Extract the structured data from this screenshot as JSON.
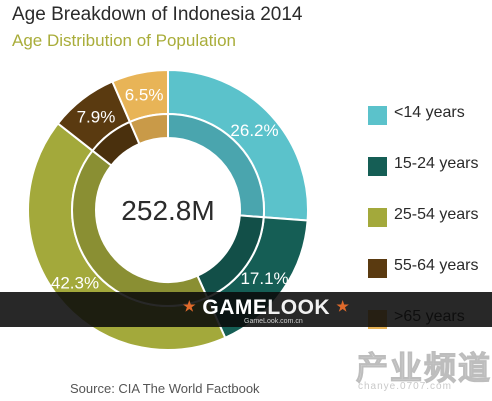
{
  "chart_data": {
    "type": "pie",
    "title": "Age Breakdown of Indonesia 2014",
    "subtitle": "Age Distribution of Population",
    "center_label": "252.8M",
    "categories": [
      "<14 years",
      "15-24 years",
      "25-54 years",
      "55-64 years",
      ">65 years"
    ],
    "values": [
      26.2,
      17.1,
      42.3,
      7.9,
      6.5
    ],
    "value_labels": [
      "26.2%",
      "17.1%",
      "42.3%",
      "7.9%",
      "6.5%"
    ],
    "colors": [
      "#5bc2cb",
      "#155e55",
      "#a3a93b",
      "#5a3a10",
      "#e8b457"
    ],
    "inner_colors": [
      "#4aa5ae",
      "#124f48",
      "#8a8f33",
      "#4a300d",
      "#c99a48"
    ],
    "style": "donut",
    "legend_position": "right"
  },
  "source": "Source: CIA The World Factbook",
  "watermark": {
    "logo_part1": "GAME",
    "logo_part2": "LOOK",
    "logo_star": "★",
    "url": "GameLook.com.cn",
    "corner_text": "产业频道",
    "corner_url": "chanye.0707.com"
  }
}
